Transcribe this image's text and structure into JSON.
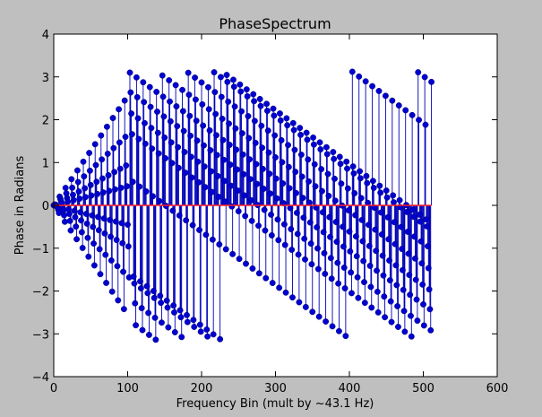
{
  "chart_data": {
    "type": "stem",
    "title": "PhaseSpectrum",
    "xlabel": "Frequency Bin (mult by ~43.1 Hz)",
    "ylabel": "Phase in Radians",
    "xlim": [
      0,
      600
    ],
    "ylim": [
      -4,
      4
    ],
    "xticks": [
      "0",
      "100",
      "200",
      "300",
      "400",
      "500",
      "600"
    ],
    "yticks": [
      "4",
      "3",
      "2",
      "1",
      "0",
      "−1",
      "−2",
      "−3",
      "−4"
    ],
    "grid": false,
    "n_bins": 512,
    "colors": {
      "stem": "#0000b8",
      "marker": "#0000d0",
      "baseline": "#ff2020",
      "plot_bg": "#ffffff",
      "figure_bg": "#bfbfbf"
    },
    "series": [
      {
        "x_range": [
          0,
          102
        ],
        "pattern": "fan",
        "slopes_per_bin": [
          0.0255,
          0.0165,
          0.0095,
          0.0045,
          -0.0045,
          -0.0095,
          -0.0165,
          -0.0255
        ]
      },
      {
        "x_range": [
          103,
          511
        ],
        "pattern": "wrapped-descending",
        "start_phases": [
          3.1,
          2.65,
          2.17,
          1.7,
          0.6,
          -1.6,
          -1.75,
          -2.2,
          -2.7
        ],
        "slope_per_bin": -0.0125
      }
    ]
  }
}
